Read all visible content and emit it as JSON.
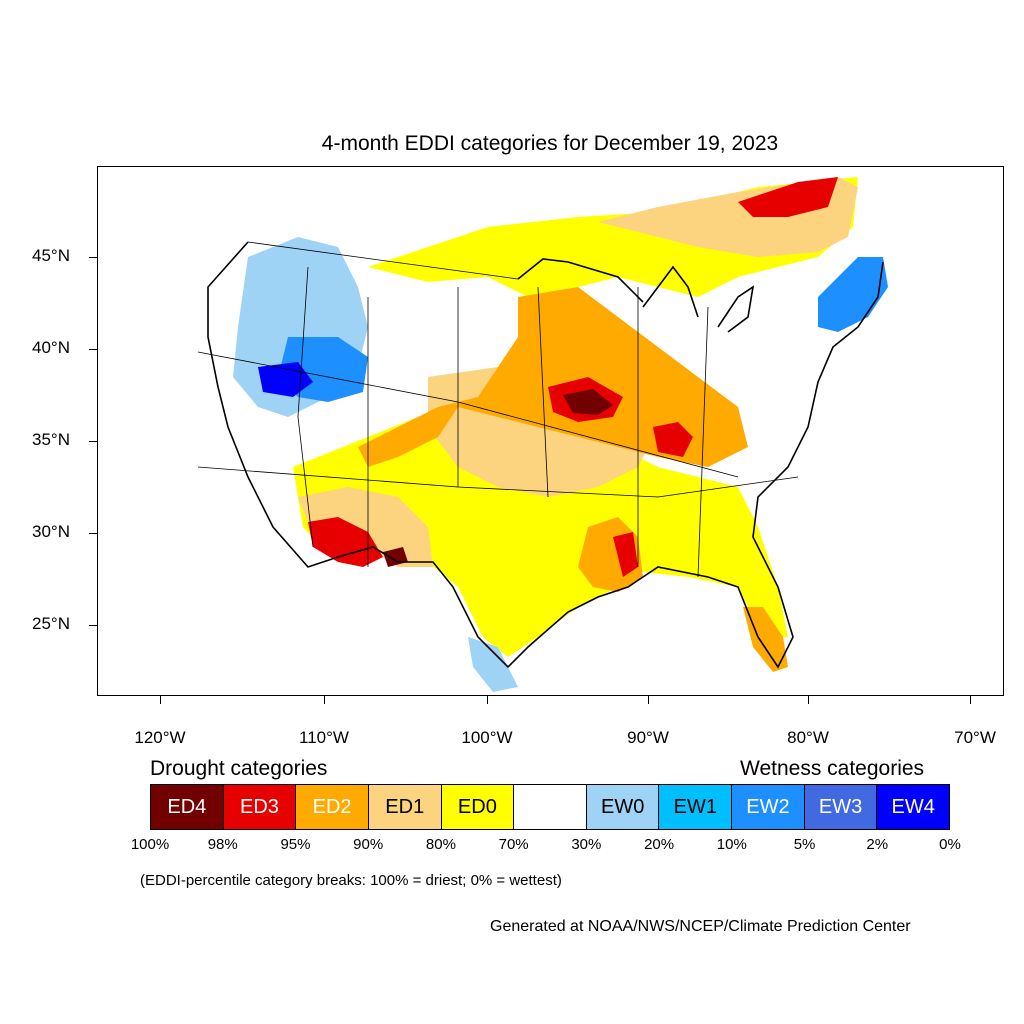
{
  "title": "4-month EDDI categories for December 19, 2023",
  "lat_labels": [
    "45°N",
    "40°N",
    "35°N",
    "30°N",
    "25°N"
  ],
  "lon_labels": [
    "120°W",
    "110°W",
    "100°W",
    "90°W",
    "80°W",
    "70°W"
  ],
  "legend": {
    "drought_heading": "Drought categories",
    "wetness_heading": "Wetness categories",
    "categories": [
      {
        "label": "ED4",
        "color": "#730000",
        "text_color": "#ffffff"
      },
      {
        "label": "ED3",
        "color": "#e60000",
        "text_color": "#ffffff"
      },
      {
        "label": "ED2",
        "color": "#ffaa00",
        "text_color": "#ffffff"
      },
      {
        "label": "ED1",
        "color": "#fcd37f",
        "text_color": "#000000"
      },
      {
        "label": "ED0",
        "color": "#ffff00",
        "text_color": "#000000"
      },
      {
        "label": "",
        "color": "#ffffff",
        "text_color": "#000000"
      },
      {
        "label": "EW0",
        "color": "#9fd3f5",
        "text_color": "#000000"
      },
      {
        "label": "EW1",
        "color": "#00bfff",
        "text_color": "#000000"
      },
      {
        "label": "EW2",
        "color": "#1e8fff",
        "text_color": "#ffffff"
      },
      {
        "label": "EW3",
        "color": "#4169e1",
        "text_color": "#ffffff"
      },
      {
        "label": "EW4",
        "color": "#0000ff",
        "text_color": "#ffffff"
      }
    ],
    "breaks": [
      "100%",
      "98%",
      "95%",
      "90%",
      "80%",
      "70%",
      "30%",
      "20%",
      "10%",
      "5%",
      "2%",
      "0%"
    ]
  },
  "note": "(EDDI-percentile category breaks: 100% = driest; 0% = wettest)",
  "credit": "Generated at NOAA/NWS/NCEP/Climate Prediction Center"
}
